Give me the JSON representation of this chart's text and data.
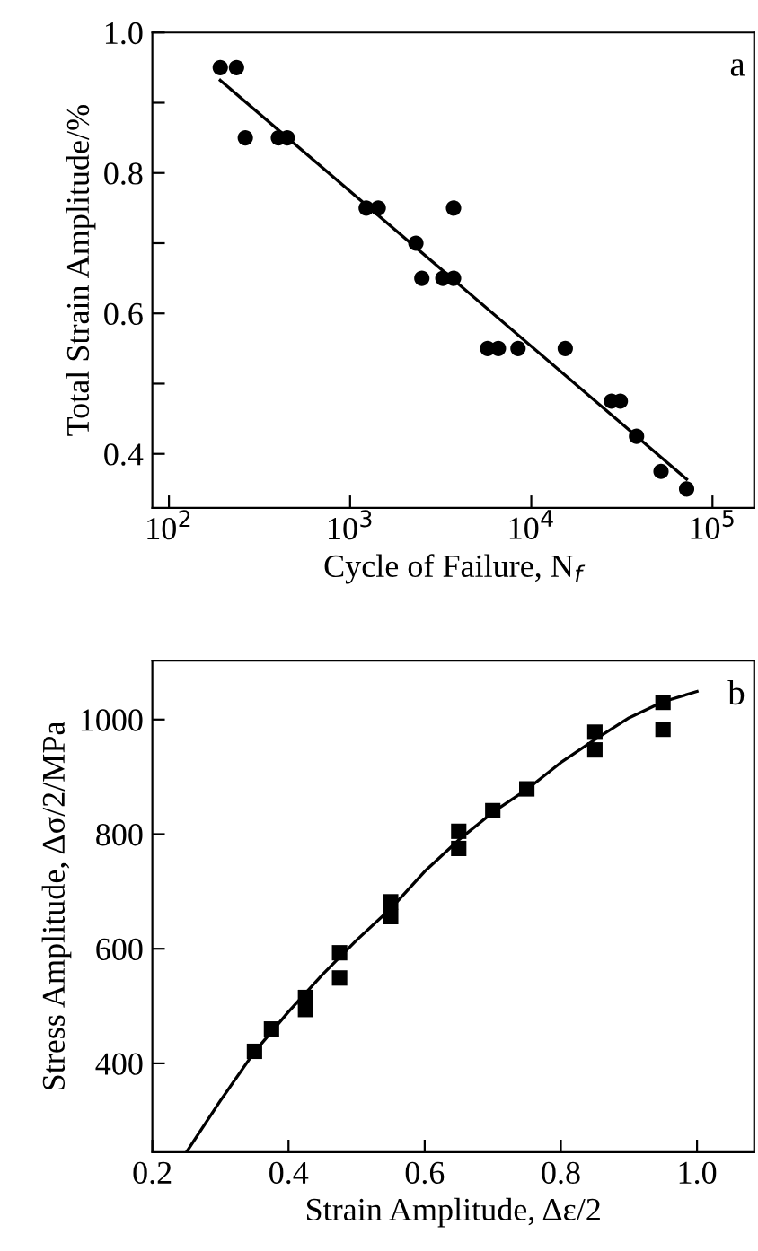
{
  "chart_data": [
    {
      "type": "scatter",
      "xlabel": "Cycle of Failure, N$_{f}$",
      "ylabel": "Total Strain Amplitude/%",
      "annotations": [
        "a"
      ],
      "log": "x",
      "marker": "circle",
      "grid": false,
      "legend": false,
      "xlim": [
        81,
        170000
      ],
      "ylim": [
        0.323,
        1.0
      ],
      "xticks": [
        {
          "value": 100,
          "label": "10$^{2}$"
        },
        {
          "value": 1000,
          "label": "10$^{3}$"
        },
        {
          "value": 10000,
          "label": "10$^{4}$"
        },
        {
          "value": 100000,
          "label": "10$^{5}$"
        }
      ],
      "yticks": [
        {
          "value": 0.4,
          "label": "0.4"
        },
        {
          "value": 0.5,
          "label": null
        },
        {
          "value": 0.6,
          "label": "0.6"
        },
        {
          "value": 0.7,
          "label": null
        },
        {
          "value": 0.8,
          "label": "0.8"
        },
        {
          "value": 0.9,
          "label": null
        },
        {
          "value": 1.0,
          "label": "1.0"
        }
      ],
      "series": [
        {
          "color": "#000000",
          "x": [
            192,
            236,
            264,
            402,
            450,
            1227,
            1430,
            2307,
            2489,
            3250,
            3724,
            3724,
            5740,
            6580,
            8450,
            15400,
            27700,
            31000,
            38100,
            52000,
            72000
          ],
          "values": [
            0.95,
            0.95,
            0.85,
            0.85,
            0.85,
            0.75,
            0.75,
            0.7,
            0.65,
            0.65,
            0.65,
            0.75,
            0.55,
            0.55,
            0.55,
            0.55,
            0.475,
            0.475,
            0.425,
            0.375,
            0.35
          ]
        },
        {
          "type": "line",
          "color": "#000000",
          "marker": "none",
          "x": [
            192,
            72000
          ],
          "values": [
            0.932,
            0.364
          ]
        }
      ]
    },
    {
      "type": "scatter",
      "xlabel": "Strain Amplitude, Δε/2",
      "ylabel": "Stress Amplitude, Δσ/2/MPa",
      "annotations": [
        "b"
      ],
      "marker": "square",
      "grid": false,
      "legend": false,
      "xlim": [
        0.2,
        1.084
      ],
      "ylim": [
        245,
        1103
      ],
      "xticks": [
        0.2,
        0.4,
        0.6,
        0.8,
        {
          "value": 1.0,
          "label": "1.0"
        }
      ],
      "yticks": [
        400,
        600,
        800,
        1000
      ],
      "series": [
        {
          "color": "#000000",
          "x": [
            0.35,
            0.375,
            0.425,
            0.425,
            0.475,
            0.475,
            0.55,
            0.55,
            0.65,
            0.65,
            0.7,
            0.75,
            0.85,
            0.85,
            0.95,
            0.95
          ],
          "values": [
            421,
            460,
            515,
            494,
            593,
            549,
            682,
            656,
            805,
            775,
            841,
            879,
            978,
            947,
            1030,
            983
          ]
        },
        {
          "type": "line",
          "color": "#000000",
          "marker": "none",
          "x": [
            0.25,
            0.3,
            0.35,
            0.4,
            0.45,
            0.5,
            0.55,
            0.6,
            0.65,
            0.7,
            0.75,
            0.8,
            0.85,
            0.9,
            0.95,
            1.0
          ],
          "values": [
            245,
            335,
            420,
            490,
            555,
            615,
            670,
            735,
            790,
            838,
            878,
            925,
            965,
            1003,
            1031,
            1049
          ]
        }
      ]
    }
  ]
}
